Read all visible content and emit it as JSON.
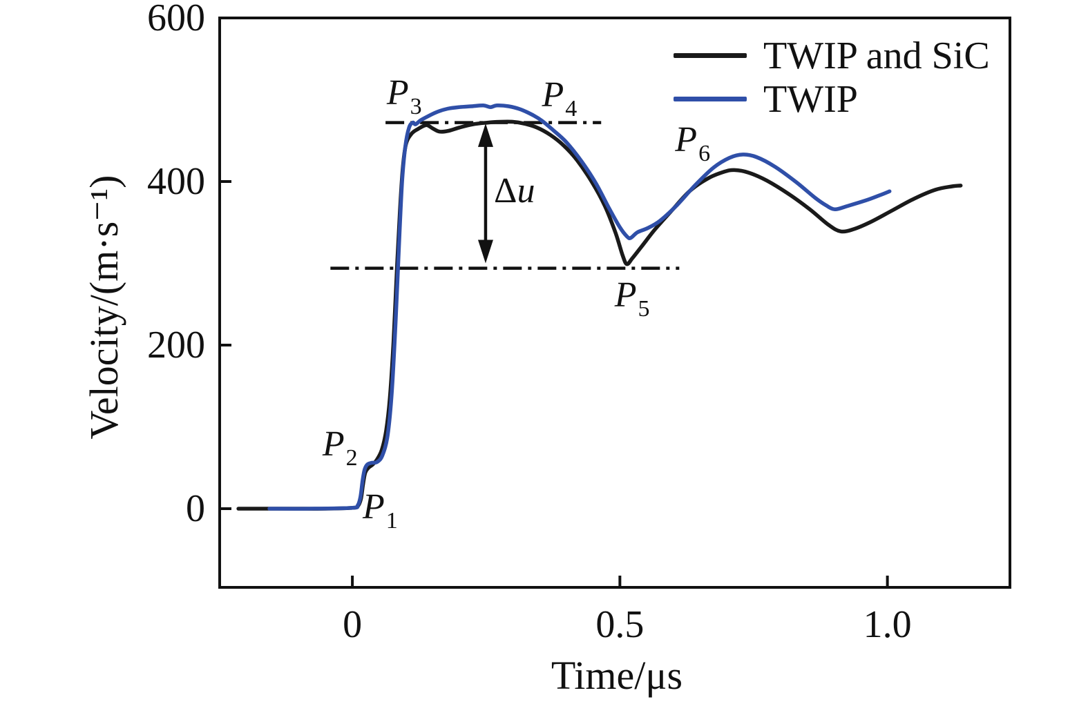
{
  "chart_data": {
    "type": "line",
    "title": "",
    "xlabel": "Time/μs",
    "ylabel": "Velocity/(m·s⁻¹)",
    "xlim": [
      -0.248,
      1.229
    ],
    "ylim": [
      -96.2,
      600
    ],
    "grid": false,
    "legend_position": "top-right-inside",
    "xticks": [
      {
        "value": 0,
        "label": "0"
      },
      {
        "value": 0.5,
        "label": "0.5"
      },
      {
        "value": 1.0,
        "label": "1.0"
      }
    ],
    "yticks": [
      {
        "value": 0,
        "label": "0"
      },
      {
        "value": 200,
        "label": "200"
      },
      {
        "value": 400,
        "label": "400"
      },
      {
        "value": 600,
        "label": "600"
      }
    ],
    "series": [
      {
        "name": "TWIP and SiC",
        "color": "#1a1a1a",
        "points": [
          [
            -0.213,
            0
          ],
          [
            -0.12,
            0
          ],
          [
            -0.05,
            0
          ],
          [
            0.0,
            1
          ],
          [
            0.01,
            3
          ],
          [
            0.016,
            12
          ],
          [
            0.02,
            30
          ],
          [
            0.024,
            44
          ],
          [
            0.03,
            50
          ],
          [
            0.038,
            54
          ],
          [
            0.046,
            60
          ],
          [
            0.055,
            72
          ],
          [
            0.063,
            95
          ],
          [
            0.07,
            135
          ],
          [
            0.077,
            205
          ],
          [
            0.083,
            290
          ],
          [
            0.089,
            365
          ],
          [
            0.094,
            415
          ],
          [
            0.1,
            445
          ],
          [
            0.11,
            458
          ],
          [
            0.122,
            464
          ],
          [
            0.138,
            469
          ],
          [
            0.15,
            465
          ],
          [
            0.163,
            461
          ],
          [
            0.18,
            462
          ],
          [
            0.2,
            466
          ],
          [
            0.225,
            470
          ],
          [
            0.252,
            472
          ],
          [
            0.275,
            473
          ],
          [
            0.3,
            473
          ],
          [
            0.32,
            471
          ],
          [
            0.345,
            466
          ],
          [
            0.37,
            457
          ],
          [
            0.395,
            444
          ],
          [
            0.42,
            426
          ],
          [
            0.448,
            399
          ],
          [
            0.472,
            370
          ],
          [
            0.492,
            337
          ],
          [
            0.505,
            310
          ],
          [
            0.513,
            299
          ],
          [
            0.523,
            306
          ],
          [
            0.54,
            320
          ],
          [
            0.565,
            341
          ],
          [
            0.595,
            363
          ],
          [
            0.63,
            388
          ],
          [
            0.665,
            404
          ],
          [
            0.695,
            412
          ],
          [
            0.714,
            414
          ],
          [
            0.74,
            411
          ],
          [
            0.775,
            401
          ],
          [
            0.815,
            385
          ],
          [
            0.855,
            366
          ],
          [
            0.89,
            347
          ],
          [
            0.913,
            339
          ],
          [
            0.938,
            342
          ],
          [
            0.97,
            351
          ],
          [
            1.01,
            365
          ],
          [
            1.05,
            379
          ],
          [
            1.09,
            390
          ],
          [
            1.12,
            394
          ],
          [
            1.137,
            395
          ]
        ]
      },
      {
        "name": "TWIP",
        "color": "#2f4fa8",
        "points": [
          [
            -0.155,
            0
          ],
          [
            -0.08,
            0
          ],
          [
            0.0,
            1
          ],
          [
            0.01,
            4
          ],
          [
            0.015,
            14
          ],
          [
            0.019,
            34
          ],
          [
            0.023,
            48
          ],
          [
            0.028,
            54
          ],
          [
            0.036,
            56
          ],
          [
            0.046,
            57
          ],
          [
            0.056,
            65
          ],
          [
            0.066,
            90
          ],
          [
            0.074,
            145
          ],
          [
            0.081,
            230
          ],
          [
            0.087,
            320
          ],
          [
            0.093,
            400
          ],
          [
            0.099,
            443
          ],
          [
            0.106,
            466
          ],
          [
            0.113,
            472
          ],
          [
            0.118,
            470
          ],
          [
            0.128,
            475
          ],
          [
            0.142,
            480
          ],
          [
            0.158,
            485
          ],
          [
            0.178,
            489
          ],
          [
            0.2,
            491
          ],
          [
            0.222,
            492
          ],
          [
            0.245,
            493
          ],
          [
            0.258,
            491
          ],
          [
            0.27,
            493
          ],
          [
            0.292,
            492
          ],
          [
            0.315,
            488
          ],
          [
            0.338,
            481
          ],
          [
            0.355,
            474
          ],
          [
            0.375,
            463
          ],
          [
            0.4,
            448
          ],
          [
            0.428,
            425
          ],
          [
            0.455,
            398
          ],
          [
            0.48,
            367
          ],
          [
            0.5,
            344
          ],
          [
            0.513,
            333
          ],
          [
            0.52,
            331
          ],
          [
            0.533,
            338
          ],
          [
            0.552,
            343
          ],
          [
            0.575,
            352
          ],
          [
            0.605,
            370
          ],
          [
            0.64,
            395
          ],
          [
            0.675,
            417
          ],
          [
            0.705,
            429
          ],
          [
            0.73,
            433
          ],
          [
            0.755,
            430
          ],
          [
            0.79,
            418
          ],
          [
            0.83,
            399
          ],
          [
            0.865,
            380
          ],
          [
            0.885,
            371
          ],
          [
            0.902,
            366
          ],
          [
            0.925,
            370
          ],
          [
            0.96,
            377
          ],
          [
            0.985,
            383
          ],
          [
            1.004,
            388
          ]
        ]
      }
    ],
    "reference_lines": [
      {
        "name": "upper-plateau-level",
        "style": "dash-dot",
        "value": 472,
        "t_start": 0.062,
        "t_end": 0.465,
        "color": "#111111"
      },
      {
        "name": "lower-trough-level",
        "style": "dash-dot",
        "value": 294,
        "t_start": -0.041,
        "t_end": 0.611,
        "color": "#111111"
      }
    ],
    "arrow": {
      "name": "delta-u-arrow",
      "style": "double-headed-vertical",
      "t": 0.249,
      "v_top": 471,
      "v_bottom": 300
    },
    "annotations": [
      {
        "name": "p1",
        "prefix": "",
        "main": "P",
        "sub": "1",
        "t": 0.052,
        "v": -7
      },
      {
        "name": "p2",
        "prefix": "",
        "main": "P",
        "sub": "2",
        "t": -0.023,
        "v": 70
      },
      {
        "name": "p3",
        "prefix": "",
        "main": "P",
        "sub": "3",
        "t": 0.097,
        "v": 500
      },
      {
        "name": "p4",
        "prefix": "",
        "main": "P",
        "sub": "4",
        "t": 0.387,
        "v": 497
      },
      {
        "name": "p5",
        "prefix": "",
        "main": "P",
        "sub": "5",
        "t": 0.523,
        "v": 252
      },
      {
        "name": "p6",
        "prefix": "",
        "main": "P",
        "sub": "6",
        "t": 0.636,
        "v": 442
      },
      {
        "name": "delta-u",
        "prefix": "Δ",
        "main": "u",
        "sub": "",
        "t": 0.303,
        "v": 388
      }
    ]
  }
}
